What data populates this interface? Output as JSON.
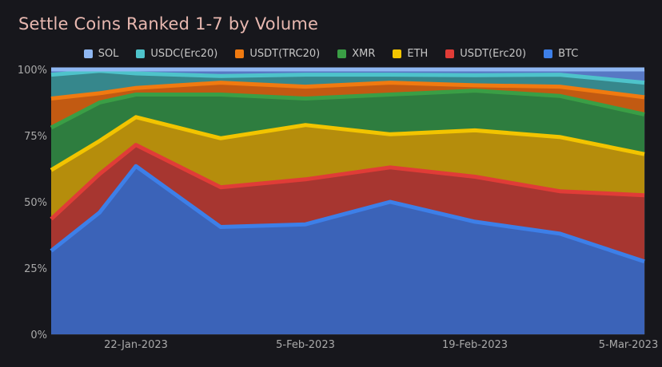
{
  "chart_data": {
    "type": "area",
    "title": "Settle Coins Ranked 1-7 by Volume",
    "stacked": true,
    "normalized": true,
    "x": [
      "2023-01-15",
      "2023-01-19",
      "2023-01-22",
      "2023-01-29",
      "2023-02-05",
      "2023-02-12",
      "2023-02-19",
      "2023-02-26",
      "2023-03-05"
    ],
    "x_tick_labels": [
      "22-Jan-2023",
      "5-Feb-2023",
      "19-Feb-2023",
      "5-Mar-2023"
    ],
    "y_tick_labels": [
      "0%",
      "25%",
      "50%",
      "75%",
      "100%"
    ],
    "ylim": [
      0,
      100
    ],
    "grid": true,
    "legend_position": "top",
    "series": [
      {
        "name": "BTC",
        "color": "#3d7fe8",
        "fill": "#3b63b8",
        "values": [
          31.5,
          46,
          63.5,
          40.5,
          41.5,
          50,
          42.5,
          38,
          27.5
        ]
      },
      {
        "name": "USDT(Erc20)",
        "color": "#e03c37",
        "fill": "#a73630",
        "values": [
          12,
          14.5,
          8,
          15,
          17,
          13,
          17,
          16,
          25
        ]
      },
      {
        "name": "ETH",
        "color": "#f2c400",
        "fill": "#b58d0c",
        "values": [
          18.5,
          12.5,
          10.5,
          18.5,
          20.5,
          12.5,
          17.5,
          20.5,
          15.5
        ]
      },
      {
        "name": "XMR",
        "color": "#3a9e45",
        "fill": "#2e7d3f",
        "values": [
          16,
          14.5,
          8.5,
          16.5,
          10,
          15,
          15,
          15.5,
          15
        ]
      },
      {
        "name": "USDT(TRC20)",
        "color": "#f07a10",
        "fill": "#c25a12",
        "values": [
          11,
          3.5,
          2.5,
          4.5,
          4.5,
          4.5,
          2,
          3.5,
          6.5
        ]
      },
      {
        "name": "USDC(Erc20)",
        "color": "#4ec3cb",
        "fill": "#36878c",
        "values": [
          9,
          8.5,
          5.5,
          2.5,
          4.5,
          3,
          3.8,
          4.5,
          5.5
        ]
      },
      {
        "name": "SOL",
        "color": "#8fb7f2",
        "fill": "#5778c4",
        "values": [
          2,
          0.5,
          1.5,
          2.5,
          2,
          2,
          2.2,
          2,
          5
        ]
      }
    ]
  }
}
